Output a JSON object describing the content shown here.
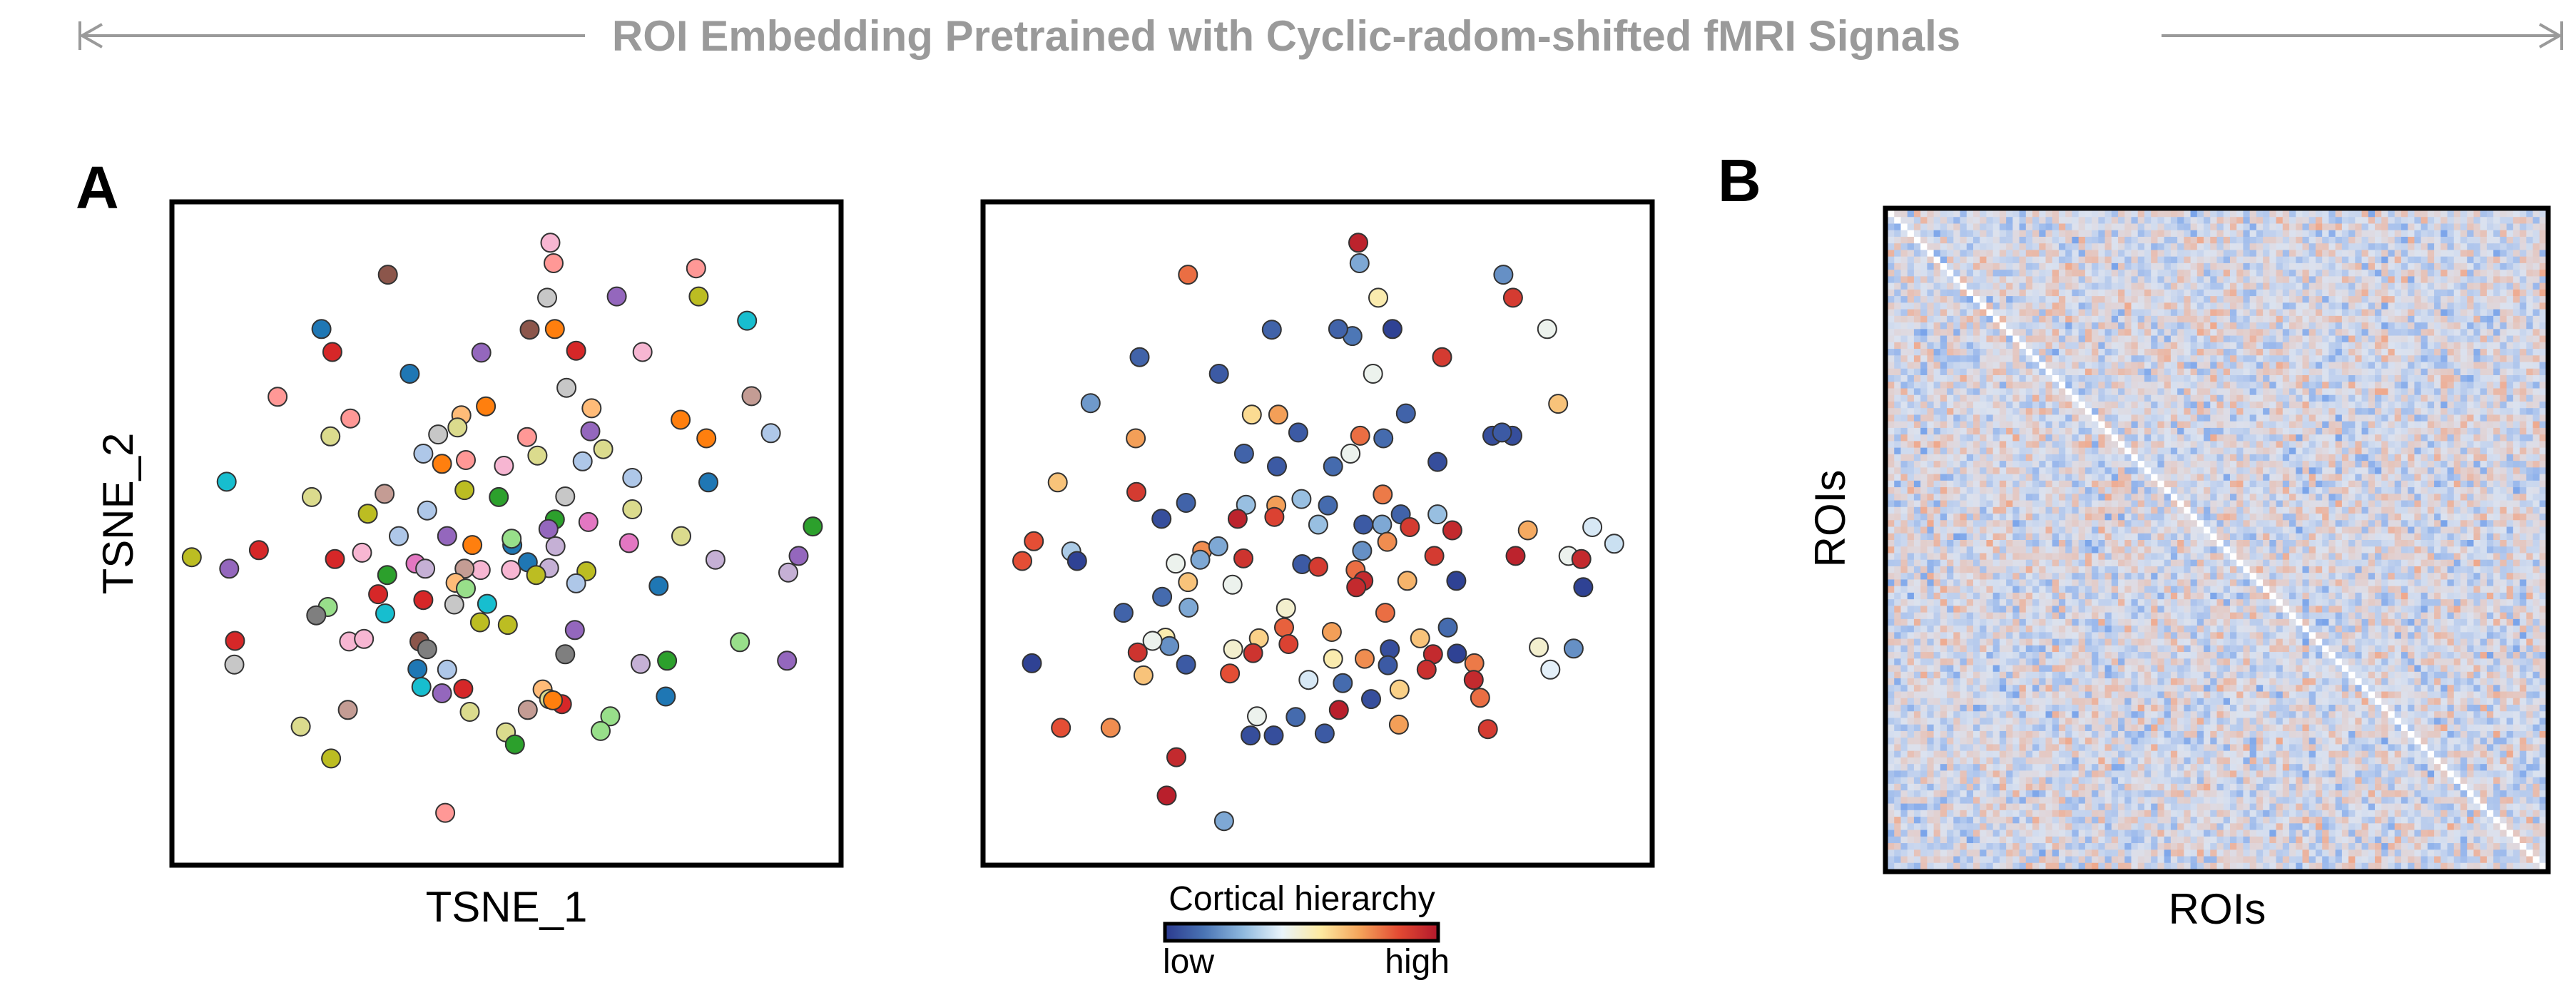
{
  "colors": {
    "header": "#9a9a9a",
    "frame": "#000000",
    "dot_stroke": "#333333",
    "category_palette": [
      "#1f77b4",
      "#ff7f0e",
      "#2ca02c",
      "#d62728",
      "#9467bd",
      "#8c564b",
      "#e377c2",
      "#7f7f7f",
      "#bcbd22",
      "#17becf",
      "#aec7e8",
      "#ffbb78",
      "#98df8a",
      "#ff9896",
      "#c5b0d5",
      "#c49c94",
      "#f7b6d2",
      "#c7c7c7",
      "#dbdb8d",
      "#9edae5"
    ],
    "hierarchy_ramp": [
      "#2b3a8f",
      "#4a74b4",
      "#8fb9de",
      "#e9f4fb",
      "#fde9a0",
      "#f4a35a",
      "#e34a33",
      "#b2182b"
    ],
    "heatmap_ramp": [
      "#7aa4ea",
      "#dbe2ef",
      "#efa98d"
    ],
    "diagonal": "#ffffff"
  },
  "header": {
    "title": "ROI Embedding Pretrained with Cyclic-radom-shifted fMRI Signals"
  },
  "panels": {
    "a_label": "A",
    "b_label": "B"
  },
  "chart_data": [
    {
      "type": "scatter",
      "name": "tsne-by-roi",
      "xlabel": "TSNE_1",
      "ylabel": "TSNE_2",
      "xlim": [
        0,
        100
      ],
      "ylim": [
        0,
        100
      ],
      "points": [
        [
          56.8,
          95.5,
          16
        ],
        [
          57.3,
          92.3,
          13
        ],
        [
          31.6,
          90.5,
          5
        ],
        [
          79.4,
          91.5,
          13
        ],
        [
          56.3,
          86.9,
          17
        ],
        [
          67.1,
          87.1,
          4
        ],
        [
          79.8,
          87.1,
          8
        ],
        [
          87.3,
          83.3,
          9
        ],
        [
          21.3,
          82.0,
          0
        ],
        [
          57.5,
          82.0,
          1
        ],
        [
          53.6,
          81.9,
          5
        ],
        [
          46.1,
          78.3,
          4
        ],
        [
          60.8,
          78.6,
          3
        ],
        [
          71.1,
          78.4,
          16
        ],
        [
          23.0,
          78.4,
          3
        ],
        [
          35.0,
          75.0,
          0
        ],
        [
          59.3,
          72.8,
          17
        ],
        [
          14.5,
          71.4,
          13
        ],
        [
          88.0,
          71.5,
          15
        ],
        [
          46.8,
          69.9,
          1
        ],
        [
          63.2,
          69.6,
          11
        ],
        [
          25.8,
          68.0,
          13
        ],
        [
          43.0,
          68.5,
          11
        ],
        [
          42.4,
          66.6,
          18
        ],
        [
          77.0,
          67.8,
          1
        ],
        [
          22.7,
          65.2,
          18
        ],
        [
          39.4,
          65.5,
          17
        ],
        [
          63.0,
          66.0,
          4
        ],
        [
          81.0,
          64.9,
          1
        ],
        [
          53.2,
          65.1,
          13
        ],
        [
          91.0,
          65.7,
          10
        ],
        [
          65.0,
          63.2,
          18
        ],
        [
          37.1,
          62.5,
          10
        ],
        [
          40.0,
          60.9,
          1
        ],
        [
          54.8,
          62.2,
          18
        ],
        [
          43.7,
          61.5,
          13
        ],
        [
          61.8,
          61.3,
          10
        ],
        [
          49.6,
          60.6,
          16
        ],
        [
          69.5,
          58.7,
          10
        ],
        [
          6.6,
          58.1,
          9
        ],
        [
          43.5,
          56.8,
          8
        ],
        [
          31.1,
          56.2,
          15
        ],
        [
          59.1,
          55.8,
          17
        ],
        [
          19.8,
          55.7,
          18
        ],
        [
          48.8,
          55.7,
          2
        ],
        [
          81.3,
          58.0,
          0
        ],
        [
          37.7,
          53.6,
          10
        ],
        [
          69.5,
          53.8,
          18
        ],
        [
          28.5,
          53.1,
          8
        ],
        [
          97.5,
          51.1,
          2
        ],
        [
          57.5,
          52.2,
          2
        ],
        [
          62.7,
          51.8,
          6
        ],
        [
          56.5,
          50.7,
          4
        ],
        [
          50.9,
          48.2,
          0
        ],
        [
          40.8,
          49.6,
          4
        ],
        [
          77.1,
          49.6,
          18
        ],
        [
          57.6,
          48.0,
          14
        ],
        [
          50.8,
          49.2,
          12
        ],
        [
          33.3,
          49.6,
          10
        ],
        [
          44.7,
          48.2,
          1
        ],
        [
          11.6,
          47.4,
          3
        ],
        [
          69.0,
          48.5,
          6
        ],
        [
          56.6,
          44.6,
          14
        ],
        [
          46.0,
          44.3,
          16
        ],
        [
          27.6,
          47.0,
          16
        ],
        [
          50.7,
          44.3,
          16
        ],
        [
          35.9,
          45.3,
          6
        ],
        [
          23.4,
          46.0,
          3
        ],
        [
          62.4,
          44.1,
          8
        ],
        [
          53.3,
          45.5,
          0
        ],
        [
          43.5,
          44.5,
          15
        ],
        [
          82.4,
          45.9,
          14
        ],
        [
          1.2,
          46.3,
          8
        ],
        [
          31.5,
          43.5,
          2
        ],
        [
          7.0,
          44.5,
          4
        ],
        [
          93.7,
          43.9,
          14
        ],
        [
          37.4,
          44.5,
          14
        ],
        [
          95.3,
          46.5,
          4
        ],
        [
          42.1,
          42.3,
          11
        ],
        [
          43.7,
          41.4,
          12
        ],
        [
          60.8,
          42.2,
          10
        ],
        [
          54.6,
          43.5,
          8
        ],
        [
          37.1,
          39.6,
          3
        ],
        [
          73.6,
          41.8,
          0
        ],
        [
          47.0,
          39.0,
          9
        ],
        [
          30.1,
          40.5,
          3
        ],
        [
          31.2,
          37.5,
          9
        ],
        [
          22.3,
          38.5,
          12
        ],
        [
          20.5,
          37.2,
          7
        ],
        [
          41.9,
          38.9,
          17
        ],
        [
          50.2,
          35.7,
          8
        ],
        [
          45.9,
          36.1,
          8
        ],
        [
          36.5,
          33.1,
          5
        ],
        [
          25.6,
          33.1,
          16
        ],
        [
          27.9,
          33.5,
          16
        ],
        [
          7.9,
          33.2,
          3
        ],
        [
          86.2,
          33.0,
          12
        ],
        [
          37.7,
          31.9,
          7
        ],
        [
          59.1,
          31.1,
          7
        ],
        [
          60.6,
          34.9,
          4
        ],
        [
          70.8,
          29.6,
          14
        ],
        [
          74.9,
          30.1,
          2
        ],
        [
          93.5,
          30.1,
          4
        ],
        [
          7.8,
          29.5,
          17
        ],
        [
          36.2,
          28.8,
          0
        ],
        [
          40.8,
          28.7,
          10
        ],
        [
          43.3,
          25.7,
          3
        ],
        [
          55.6,
          25.6,
          11
        ],
        [
          58.6,
          23.3,
          3
        ],
        [
          44.3,
          22.1,
          18
        ],
        [
          36.8,
          26.0,
          9
        ],
        [
          40.0,
          25.0,
          4
        ],
        [
          74.7,
          24.5,
          0
        ],
        [
          56.6,
          24.1,
          18
        ],
        [
          57.2,
          23.9,
          1
        ],
        [
          53.3,
          22.4,
          15
        ],
        [
          25.4,
          22.4,
          15
        ],
        [
          66.1,
          21.4,
          12
        ],
        [
          49.9,
          18.9,
          18
        ],
        [
          64.6,
          19.1,
          12
        ],
        [
          51.3,
          17.0,
          2
        ],
        [
          18.1,
          19.8,
          18
        ],
        [
          22.8,
          14.8,
          8
        ],
        [
          40.5,
          6.3,
          13
        ]
      ]
    },
    {
      "type": "scatter",
      "name": "tsne-by-cortical-hierarchy",
      "xlim": [
        0,
        100
      ],
      "ylim": [
        0,
        100
      ],
      "colorbar": {
        "title": "Cortical hierarchy",
        "low_label": "low",
        "high_label": "high"
      },
      "points": [
        [
          56.3,
          95.5,
          0.97
        ],
        [
          56.5,
          92.3,
          0.25
        ],
        [
          29.9,
          90.5,
          0.8
        ],
        [
          78.8,
          90.5,
          0.2
        ],
        [
          59.4,
          86.9,
          0.55
        ],
        [
          80.3,
          86.9,
          0.9
        ],
        [
          42.9,
          81.9,
          0.1
        ],
        [
          55.4,
          80.9,
          0.15
        ],
        [
          53.2,
          82.0,
          0.1
        ],
        [
          61.6,
          82.0,
          0.02
        ],
        [
          85.6,
          82.0,
          0.45
        ],
        [
          22.4,
          77.6,
          0.1
        ],
        [
          69.3,
          77.6,
          0.9
        ],
        [
          58.6,
          75.0,
          0.45
        ],
        [
          34.7,
          75.0,
          0.08
        ],
        [
          14.8,
          70.4,
          0.22
        ],
        [
          39.8,
          68.6,
          0.6
        ],
        [
          43.9,
          68.6,
          0.72
        ],
        [
          63.7,
          68.8,
          0.1
        ],
        [
          47.0,
          65.8,
          0.08
        ],
        [
          56.6,
          65.3,
          0.8
        ],
        [
          60.2,
          64.9,
          0.12
        ],
        [
          77.1,
          65.3,
          0.05
        ],
        [
          80.2,
          65.3,
          0.05
        ],
        [
          21.8,
          64.9,
          0.72
        ],
        [
          55.1,
          62.5,
          0.45
        ],
        [
          38.6,
          62.5,
          0.1
        ],
        [
          43.7,
          60.5,
          0.08
        ],
        [
          52.4,
          60.5,
          0.12
        ],
        [
          68.6,
          61.2,
          0.05
        ],
        [
          78.6,
          65.8,
          0.08
        ],
        [
          87.3,
          70.3,
          0.65
        ],
        [
          9.7,
          58.0,
          0.65
        ],
        [
          21.9,
          56.5,
          0.9
        ],
        [
          29.6,
          54.8,
          0.1
        ],
        [
          38.9,
          54.5,
          0.3
        ],
        [
          50.1,
          51.4,
          0.3
        ],
        [
          60.1,
          56.1,
          0.78
        ],
        [
          43.6,
          54.4,
          0.72
        ],
        [
          47.5,
          55.4,
          0.3
        ],
        [
          51.6,
          54.4,
          0.12
        ],
        [
          62.9,
          53.0,
          0.1
        ],
        [
          68.6,
          53.0,
          0.3
        ],
        [
          92.6,
          51.0,
          0.4
        ],
        [
          6.0,
          48.8,
          0.85
        ],
        [
          37.6,
          52.3,
          0.97
        ],
        [
          25.8,
          52.3,
          0.05
        ],
        [
          43.3,
          52.6,
          0.88
        ],
        [
          57.1,
          51.4,
          0.08
        ],
        [
          60.0,
          51.4,
          0.25
        ],
        [
          64.3,
          51.0,
          0.9
        ],
        [
          70.9,
          50.5,
          0.95
        ],
        [
          82.6,
          50.5,
          0.7
        ],
        [
          96.0,
          48.4,
          0.38
        ],
        [
          11.8,
          47.2,
          0.33
        ],
        [
          32.1,
          47.3,
          0.75
        ],
        [
          34.6,
          48.0,
          0.25
        ],
        [
          56.9,
          47.3,
          0.2
        ],
        [
          60.8,
          48.7,
          0.75
        ],
        [
          68.1,
          46.5,
          0.9
        ],
        [
          80.7,
          46.5,
          0.97
        ],
        [
          88.9,
          46.5,
          0.45
        ],
        [
          4.2,
          45.7,
          0.85
        ],
        [
          12.7,
          45.7,
          0.02
        ],
        [
          28.0,
          45.3,
          0.45
        ],
        [
          31.8,
          45.9,
          0.25
        ],
        [
          38.5,
          46.1,
          0.92
        ],
        [
          47.6,
          45.2,
          0.08
        ],
        [
          50.1,
          44.8,
          0.9
        ],
        [
          55.9,
          44.3,
          0.8
        ],
        [
          63.9,
          42.6,
          0.68
        ],
        [
          57.1,
          42.6,
          0.95
        ],
        [
          29.9,
          42.4,
          0.65
        ],
        [
          36.8,
          42.0,
          0.45
        ],
        [
          56.0,
          41.6,
          0.95
        ],
        [
          71.5,
          42.6,
          0.02
        ],
        [
          91.2,
          41.6,
          0.02
        ],
        [
          90.9,
          46.0,
          0.95
        ],
        [
          25.9,
          40.1,
          0.12
        ],
        [
          30.0,
          38.4,
          0.25
        ],
        [
          19.9,
          37.6,
          0.1
        ],
        [
          60.5,
          37.6,
          0.8
        ],
        [
          45.1,
          38.3,
          0.5
        ],
        [
          44.8,
          35.3,
          0.82
        ],
        [
          52.2,
          34.6,
          0.72
        ],
        [
          40.9,
          33.6,
          0.62
        ],
        [
          70.2,
          35.3,
          0.12
        ],
        [
          65.9,
          33.6,
          0.65
        ],
        [
          67.9,
          31.1,
          0.95
        ],
        [
          84.3,
          32.2,
          0.5
        ],
        [
          26.4,
          33.7,
          0.55
        ],
        [
          27.0,
          32.4,
          0.2
        ],
        [
          24.4,
          33.2,
          0.45
        ],
        [
          40.0,
          31.3,
          0.92
        ],
        [
          45.5,
          32.7,
          0.88
        ],
        [
          61.2,
          31.9,
          0.05
        ],
        [
          52.4,
          30.4,
          0.55
        ],
        [
          57.3,
          30.4,
          0.75
        ],
        [
          71.6,
          31.2,
          0.02
        ],
        [
          74.3,
          29.7,
          0.78
        ],
        [
          36.9,
          31.9,
          0.5
        ],
        [
          22.1,
          31.4,
          0.92
        ],
        [
          5.7,
          29.7,
          0.02
        ],
        [
          74.2,
          27.1,
          0.95
        ],
        [
          36.4,
          28.1,
          0.85
        ],
        [
          48.6,
          27.1,
          0.4
        ],
        [
          53.9,
          26.6,
          0.12
        ],
        [
          60.9,
          29.4,
          0.08
        ],
        [
          66.9,
          28.7,
          0.93
        ],
        [
          86.1,
          28.7,
          0.42
        ],
        [
          89.7,
          32.0,
          0.2
        ],
        [
          29.6,
          29.5,
          0.08
        ],
        [
          23.0,
          27.8,
          0.65
        ],
        [
          62.7,
          25.6,
          0.62
        ],
        [
          58.3,
          24.1,
          0.05
        ],
        [
          75.2,
          24.3,
          0.8
        ],
        [
          40.6,
          21.4,
          0.45
        ],
        [
          46.6,
          21.3,
          0.12
        ],
        [
          53.3,
          22.4,
          0.98
        ],
        [
          62.6,
          20.1,
          0.72
        ],
        [
          76.4,
          19.4,
          0.9
        ],
        [
          17.9,
          19.6,
          0.75
        ],
        [
          10.2,
          19.6,
          0.85
        ],
        [
          39.6,
          18.4,
          0.05
        ],
        [
          43.2,
          18.4,
          0.05
        ],
        [
          51.1,
          18.7,
          0.08
        ],
        [
          28.1,
          15.0,
          0.95
        ],
        [
          26.6,
          9.0,
          0.98
        ],
        [
          35.5,
          5.0,
          0.25
        ]
      ]
    },
    {
      "type": "heatmap",
      "name": "roi-similarity-matrix",
      "xlabel": "ROIs",
      "ylabel": "ROIs",
      "size": 100,
      "seed": 7,
      "diagonal_value": 1.0,
      "value_range": [
        -1,
        1
      ]
    }
  ]
}
